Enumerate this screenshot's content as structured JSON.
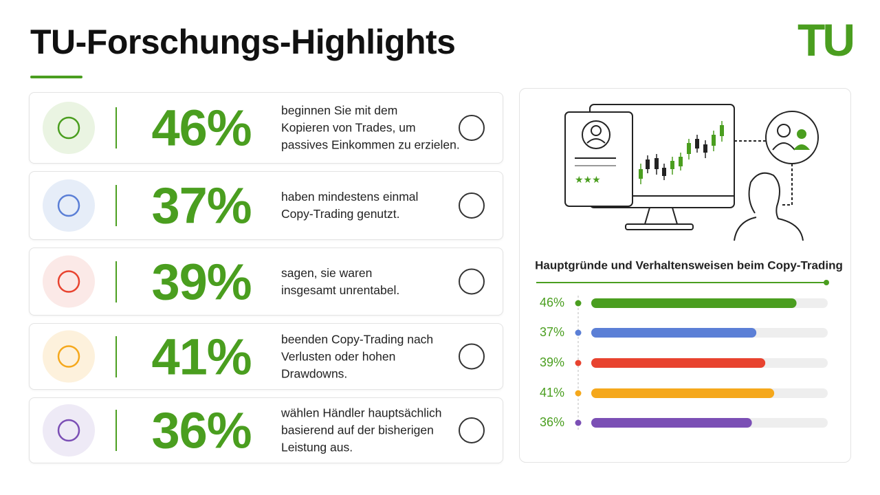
{
  "header": {
    "title": "TU-Forschungs-Highlights",
    "logo": "TU"
  },
  "stats": [
    {
      "percent": "46%",
      "text": [
        "beginnen Sie mit dem",
        "Kopieren von Trades, um",
        "passives Einkommen zu erzielen."
      ]
    },
    {
      "percent": "37%",
      "text": [
        "haben mindestens einmal",
        "Copy-Trading genutzt."
      ]
    },
    {
      "percent": "39%",
      "text": [
        "sagen, sie waren",
        "insgesamt unrentabel."
      ]
    },
    {
      "percent": "41%",
      "text": [
        "beenden Copy-Trading nach",
        "Verlusten oder hohen",
        "Drawdowns."
      ]
    },
    {
      "percent": "36%",
      "text": [
        "wählen Händler hauptsächlich",
        "basierend auf der bisherigen",
        "Leistung aus."
      ]
    }
  ],
  "chart_data": {
    "type": "bar",
    "orientation": "horizontal",
    "title": "Hauptgründe und Verhaltensweisen beim Copy-Trading",
    "values": [
      46,
      37,
      39,
      41,
      36
    ],
    "value_labels": [
      "46%",
      "37%",
      "39%",
      "41%",
      "36%"
    ],
    "colors": [
      "#4a9e1f",
      "#5b7fd6",
      "#e8432f",
      "#f5a81c",
      "#7b4fb5"
    ],
    "xlim": [
      0,
      53
    ]
  }
}
